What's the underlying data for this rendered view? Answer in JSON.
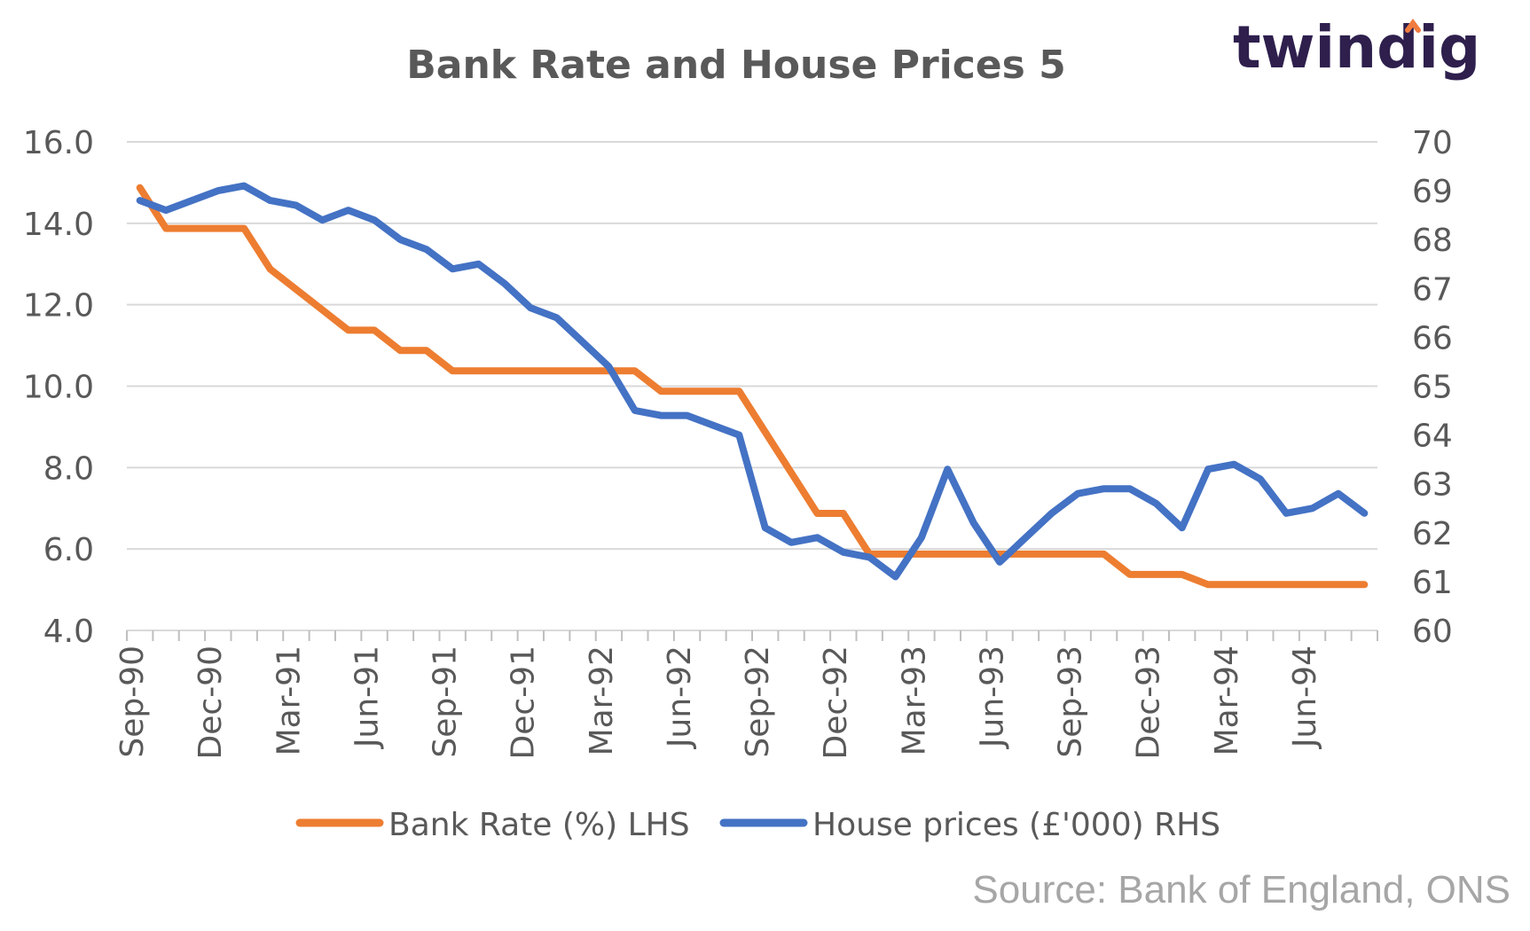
{
  "brand": {
    "logo_text": "twindig",
    "logo_accent_color": "#f07b3f",
    "logo_color": "#2e1f4d"
  },
  "source": "Source: Bank of England, ONS",
  "chart_data": {
    "type": "line",
    "title": "Bank Rate and House Prices 5",
    "x": [
      "Sep-90",
      "Oct-90",
      "Nov-90",
      "Dec-90",
      "Jan-91",
      "Feb-91",
      "Mar-91",
      "Apr-91",
      "May-91",
      "Jun-91",
      "Jul-91",
      "Aug-91",
      "Sep-91",
      "Oct-91",
      "Nov-91",
      "Dec-91",
      "Jan-92",
      "Feb-92",
      "Mar-92",
      "Apr-92",
      "May-92",
      "Jun-92",
      "Jul-92",
      "Aug-92",
      "Sep-92",
      "Oct-92",
      "Nov-92",
      "Dec-92",
      "Jan-93",
      "Feb-93",
      "Mar-93",
      "Apr-93",
      "May-93",
      "Jun-93",
      "Jul-93",
      "Aug-93",
      "Sep-93",
      "Oct-93",
      "Nov-93",
      "Dec-93",
      "Jan-94",
      "Feb-94",
      "Mar-94",
      "Apr-94",
      "May-94",
      "Jun-94",
      "Jul-94",
      "Aug-94"
    ],
    "x_tick_labels": [
      "Sep-90",
      "Dec-90",
      "Mar-91",
      "Jun-91",
      "Sep-91",
      "Dec-91",
      "Mar-92",
      "Jun-92",
      "Sep-92",
      "Dec-92",
      "Mar-93",
      "Jun-93",
      "Sep-93",
      "Dec-93",
      "Mar-94",
      "Jun-94"
    ],
    "y_left": {
      "ticks": [
        "16.0",
        "14.0",
        "12.0",
        "10.0",
        "8.0",
        "6.0",
        "4.0"
      ],
      "ylim": [
        4,
        16
      ]
    },
    "y_right": {
      "ticks": [
        "70",
        "69",
        "68",
        "67",
        "66",
        "65",
        "64",
        "63",
        "62",
        "61",
        "60"
      ],
      "ylim": [
        60,
        70
      ]
    },
    "grid": true,
    "legend_position": "bottom",
    "series": [
      {
        "name": "Bank Rate (%) LHS",
        "axis": "left",
        "color": "#ed7d31",
        "values": [
          14.875,
          13.875,
          13.875,
          13.875,
          13.875,
          12.875,
          12.375,
          11.875,
          11.375,
          11.375,
          10.875,
          10.875,
          10.375,
          10.375,
          10.375,
          10.375,
          10.375,
          10.375,
          10.375,
          10.375,
          9.875,
          9.875,
          9.875,
          9.875,
          8.875,
          7.875,
          6.875,
          6.875,
          5.875,
          5.875,
          5.875,
          5.875,
          5.875,
          5.875,
          5.875,
          5.875,
          5.875,
          5.875,
          5.375,
          5.375,
          5.375,
          5.125,
          5.125,
          5.125,
          5.125,
          5.125,
          5.125,
          5.125
        ]
      },
      {
        "name": "House prices (£'000) RHS",
        "axis": "right",
        "color": "#4472c4",
        "values": [
          68.8,
          68.6,
          68.8,
          69.0,
          69.1,
          68.8,
          68.7,
          68.4,
          68.6,
          68.4,
          68.0,
          67.8,
          67.4,
          67.5,
          67.1,
          66.6,
          66.4,
          65.9,
          65.4,
          64.5,
          64.4,
          64.4,
          64.2,
          64.0,
          62.1,
          61.8,
          61.9,
          61.6,
          61.5,
          61.1,
          61.9,
          63.3,
          62.2,
          61.4,
          61.9,
          62.4,
          62.8,
          62.9,
          62.9,
          62.6,
          62.1,
          63.3,
          63.4,
          63.1,
          62.4,
          62.5,
          62.8,
          62.4
        ]
      }
    ]
  }
}
